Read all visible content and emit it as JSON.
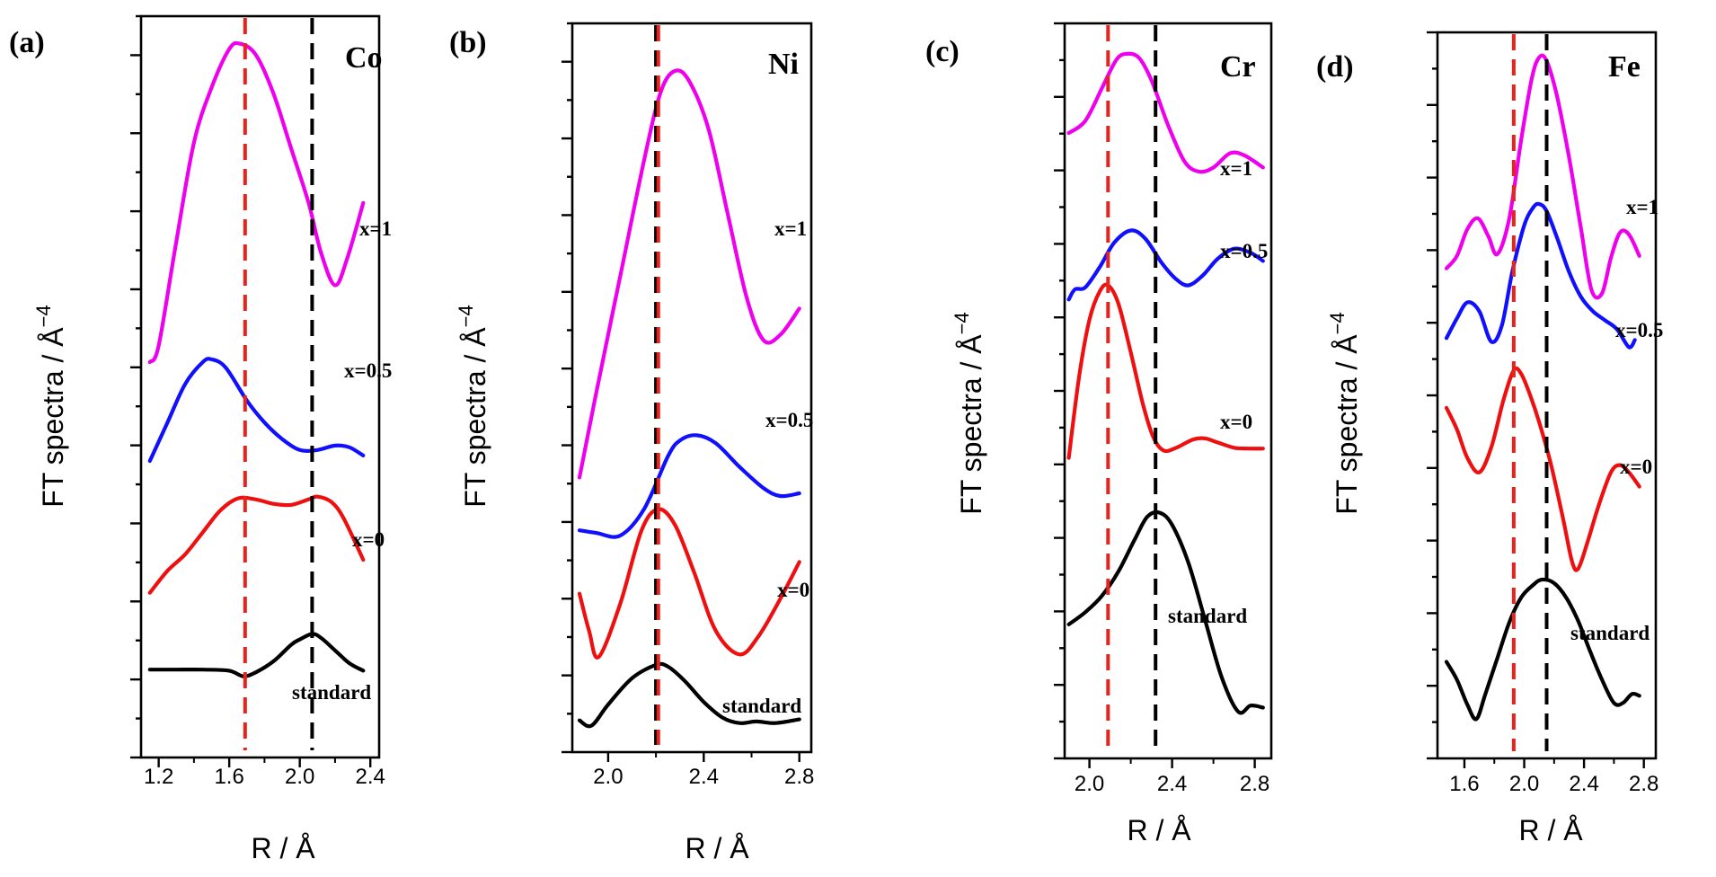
{
  "chart_data": [
    {
      "type": "line",
      "panel": "(a)",
      "element": "Co",
      "xlabel": "R / Å",
      "ylabel": "FT spectra / Å",
      "ylabel_sup": "−4",
      "xlim": [
        1.1,
        2.45
      ],
      "x_ticks": [
        1.2,
        1.6,
        2.0,
        2.4
      ],
      "tick_labels": [
        "1.2",
        "1.6",
        "2.0",
        "2.4"
      ],
      "ref_lines": [
        {
          "x": 1.69,
          "color": "#e8231c"
        },
        {
          "x": 2.07,
          "color": "#000000"
        }
      ],
      "series": [
        {
          "name": "x=1",
          "color": "#ee00ee",
          "x": [
            1.15,
            1.2,
            1.3,
            1.4,
            1.5,
            1.6,
            1.66,
            1.75,
            1.85,
            1.95,
            2.05,
            2.12,
            2.2,
            2.27,
            2.36
          ],
          "y": [
            4.6,
            4.9,
            6.8,
            8.6,
            9.6,
            10.3,
            10.4,
            10.2,
            9.5,
            8.5,
            7.5,
            6.6,
            6.0,
            6.5,
            7.5
          ]
        },
        {
          "name": "x=0.5",
          "color": "#1010ff",
          "x": [
            1.15,
            1.25,
            1.35,
            1.45,
            1.5,
            1.58,
            1.7,
            1.8,
            1.9,
            2.0,
            2.1,
            2.2,
            2.28,
            2.36
          ],
          "y": [
            2.8,
            3.5,
            4.2,
            4.6,
            4.65,
            4.5,
            3.9,
            3.5,
            3.2,
            3.0,
            3.0,
            3.08,
            3.05,
            2.9
          ]
        },
        {
          "name": "x=0",
          "color": "#ee1010",
          "x": [
            1.15,
            1.25,
            1.35,
            1.45,
            1.55,
            1.65,
            1.75,
            1.85,
            1.95,
            2.05,
            2.1,
            2.18,
            2.25,
            2.36
          ],
          "y": [
            0.4,
            0.8,
            1.1,
            1.5,
            1.9,
            2.12,
            2.1,
            2.02,
            2.0,
            2.1,
            2.15,
            2.05,
            1.75,
            1.0
          ]
        },
        {
          "name": "standard",
          "color": "#000000",
          "x": [
            1.15,
            1.3,
            1.45,
            1.6,
            1.68,
            1.75,
            1.85,
            1.95,
            2.0,
            2.07,
            2.12,
            2.2,
            2.28,
            2.36
          ],
          "y": [
            -1.0,
            -1.0,
            -1.0,
            -1.02,
            -1.12,
            -1.05,
            -0.85,
            -0.55,
            -0.45,
            -0.35,
            -0.42,
            -0.65,
            -0.88,
            -1.02
          ]
        }
      ],
      "series_labels": [
        "x=1",
        "x=0.5",
        "x=0",
        "standard"
      ]
    },
    {
      "type": "line",
      "panel": "(b)",
      "element": "Ni",
      "xlabel": "R / Å",
      "ylabel": "FT spectra / Å",
      "ylabel_sup": "−4",
      "xlim": [
        1.85,
        2.85
      ],
      "x_ticks": [
        2.0,
        2.4,
        2.8
      ],
      "tick_labels": [
        "2.0",
        "2.4",
        "2.8"
      ],
      "ref_lines": [
        {
          "x": 2.2,
          "color": "#000000"
        },
        {
          "x": 2.21,
          "color": "#e8231c"
        }
      ],
      "series": [
        {
          "name": "x=1",
          "color": "#ee00ee",
          "x": [
            1.88,
            1.95,
            2.05,
            2.15,
            2.22,
            2.28,
            2.34,
            2.42,
            2.5,
            2.58,
            2.65,
            2.72,
            2.8
          ],
          "y": [
            3.2,
            4.8,
            7.0,
            9.2,
            10.5,
            10.9,
            10.7,
            9.8,
            8.2,
            6.6,
            5.8,
            5.9,
            6.4
          ]
        },
        {
          "name": "x=0.5",
          "color": "#1010ff",
          "x": [
            1.88,
            1.95,
            2.05,
            2.15,
            2.25,
            2.3,
            2.37,
            2.45,
            2.55,
            2.65,
            2.72,
            2.8
          ],
          "y": [
            2.2,
            2.15,
            2.1,
            2.6,
            3.6,
            3.9,
            4.0,
            3.85,
            3.4,
            3.0,
            2.85,
            2.9
          ]
        },
        {
          "name": "x=0",
          "color": "#ee1010",
          "x": [
            1.88,
            1.92,
            1.96,
            2.05,
            2.14,
            2.21,
            2.28,
            2.36,
            2.45,
            2.55,
            2.63,
            2.72,
            2.8
          ],
          "y": [
            1.0,
            0.3,
            -0.2,
            0.8,
            2.2,
            2.6,
            2.3,
            1.4,
            0.3,
            -0.15,
            0.2,
            0.9,
            1.6
          ]
        },
        {
          "name": "standard",
          "color": "#000000",
          "x": [
            1.88,
            1.93,
            2.0,
            2.1,
            2.2,
            2.25,
            2.32,
            2.4,
            2.48,
            2.55,
            2.62,
            2.7,
            2.8
          ],
          "y": [
            -1.4,
            -1.5,
            -1.1,
            -0.6,
            -0.35,
            -0.38,
            -0.65,
            -1.05,
            -1.35,
            -1.45,
            -1.42,
            -1.45,
            -1.38
          ]
        }
      ],
      "series_labels": [
        "x=1",
        "x=0.5",
        "x=0",
        "standard"
      ]
    },
    {
      "type": "line",
      "panel": "(c)",
      "element": "Cr",
      "xlabel": "R / Å",
      "ylabel": "FT spectra / Å",
      "ylabel_sup": "−4",
      "xlim": [
        1.88,
        2.88
      ],
      "x_ticks": [
        2.0,
        2.4,
        2.8
      ],
      "tick_labels": [
        "2.0",
        "2.4",
        "2.8"
      ],
      "ref_lines": [
        {
          "x": 2.09,
          "color": "#e8231c"
        },
        {
          "x": 2.32,
          "color": "#000000"
        }
      ],
      "series": [
        {
          "name": "x=1",
          "color": "#ee00ee",
          "x": [
            1.9,
            1.98,
            2.06,
            2.13,
            2.18,
            2.24,
            2.3,
            2.38,
            2.46,
            2.53,
            2.6,
            2.68,
            2.75,
            2.84
          ],
          "y": [
            7.8,
            8.1,
            8.9,
            9.6,
            9.75,
            9.65,
            9.1,
            8.0,
            7.1,
            6.85,
            6.95,
            7.3,
            7.25,
            6.95
          ]
        },
        {
          "name": "x=0.5",
          "color": "#1010ff",
          "x": [
            1.9,
            1.93,
            1.98,
            2.05,
            2.12,
            2.2,
            2.27,
            2.35,
            2.42,
            2.48,
            2.55,
            2.62,
            2.7,
            2.78,
            2.84
          ],
          "y": [
            3.7,
            3.95,
            4.0,
            4.5,
            5.1,
            5.4,
            5.2,
            4.6,
            4.2,
            4.05,
            4.3,
            4.7,
            4.95,
            4.85,
            4.65
          ]
        },
        {
          "name": "x=0",
          "color": "#ee1010",
          "x": [
            1.9,
            1.95,
            2.0,
            2.05,
            2.09,
            2.14,
            2.2,
            2.26,
            2.31,
            2.36,
            2.42,
            2.5,
            2.56,
            2.62,
            2.7,
            2.77,
            2.84
          ],
          "y": [
            -0.2,
            1.8,
            3.2,
            3.9,
            4.05,
            3.6,
            2.4,
            1.1,
            0.3,
            -0.02,
            0.05,
            0.25,
            0.28,
            0.18,
            0.05,
            0.03,
            0.03
          ]
        },
        {
          "name": "standard",
          "color": "#000000",
          "x": [
            1.9,
            1.98,
            2.06,
            2.14,
            2.22,
            2.28,
            2.34,
            2.4,
            2.48,
            2.56,
            2.64,
            2.72,
            2.78,
            2.84
          ],
          "y": [
            -4.3,
            -4.0,
            -3.6,
            -3.0,
            -2.2,
            -1.65,
            -1.55,
            -1.85,
            -2.8,
            -4.2,
            -5.6,
            -6.45,
            -6.3,
            -6.35
          ]
        }
      ],
      "series_labels": [
        "x=1",
        "x=0.5",
        "x=0",
        "standard"
      ]
    },
    {
      "type": "line",
      "panel": "(d)",
      "element": "Fe",
      "xlabel": "R / Å",
      "ylabel": "FT spectra / Å",
      "ylabel_sup": "−4",
      "xlim": [
        1.42,
        2.88
      ],
      "x_ticks": [
        1.6,
        2.0,
        2.4,
        2.8
      ],
      "tick_labels": [
        "1.6",
        "2.0",
        "2.4",
        "2.8"
      ],
      "ref_lines": [
        {
          "x": 1.93,
          "color": "#e8231c"
        },
        {
          "x": 2.15,
          "color": "#000000"
        }
      ],
      "series": [
        {
          "name": "x=1",
          "color": "#ee00ee",
          "x": [
            1.48,
            1.55,
            1.62,
            1.69,
            1.76,
            1.82,
            1.9,
            1.98,
            2.05,
            2.1,
            2.15,
            2.22,
            2.3,
            2.38,
            2.45,
            2.52,
            2.58,
            2.64,
            2.7,
            2.77
          ],
          "y": [
            3.2,
            3.55,
            4.3,
            4.6,
            4.1,
            3.6,
            4.6,
            6.8,
            8.5,
            9.1,
            9.0,
            8.0,
            6.3,
            4.3,
            2.6,
            2.5,
            3.5,
            4.2,
            4.15,
            3.55
          ]
        },
        {
          "name": "x=0.5",
          "color": "#1010ff",
          "x": [
            1.48,
            1.55,
            1.62,
            1.7,
            1.78,
            1.85,
            1.92,
            2.0,
            2.06,
            2.1,
            2.15,
            2.22,
            2.3,
            2.38,
            2.46,
            2.54,
            2.62,
            2.7,
            2.74
          ],
          "y": [
            1.25,
            1.8,
            2.25,
            2.0,
            1.15,
            1.6,
            3.1,
            4.4,
            4.9,
            5.0,
            4.8,
            4.05,
            3.1,
            2.4,
            2.0,
            1.75,
            1.5,
            1.0,
            1.2
          ]
        },
        {
          "name": "x=0",
          "color": "#ee1010",
          "x": [
            1.48,
            1.55,
            1.62,
            1.7,
            1.78,
            1.86,
            1.93,
            1.98,
            2.04,
            2.1,
            2.18,
            2.26,
            2.32,
            2.36,
            2.42,
            2.5,
            2.58,
            2.64,
            2.7,
            2.77
          ],
          "y": [
            -0.7,
            -1.3,
            -2.1,
            -2.5,
            -1.8,
            -0.5,
            0.35,
            0.25,
            -0.35,
            -1.1,
            -2.3,
            -3.8,
            -5.0,
            -5.2,
            -4.5,
            -3.4,
            -2.5,
            -2.3,
            -2.5,
            -2.9
          ]
        },
        {
          "name": "standard",
          "color": "#000000",
          "x": [
            1.48,
            1.55,
            1.62,
            1.68,
            1.74,
            1.82,
            1.9,
            1.98,
            2.06,
            2.12,
            2.2,
            2.28,
            2.36,
            2.44,
            2.52,
            2.6,
            2.66,
            2.72,
            2.77
          ],
          "y": [
            -7.8,
            -8.3,
            -9.0,
            -9.4,
            -8.7,
            -7.7,
            -6.7,
            -6.0,
            -5.65,
            -5.5,
            -5.6,
            -6.0,
            -6.65,
            -7.5,
            -8.3,
            -8.95,
            -8.95,
            -8.7,
            -8.75
          ]
        }
      ],
      "series_labels": [
        "x=1",
        "x=0.5",
        "x=0",
        "standard"
      ]
    }
  ]
}
